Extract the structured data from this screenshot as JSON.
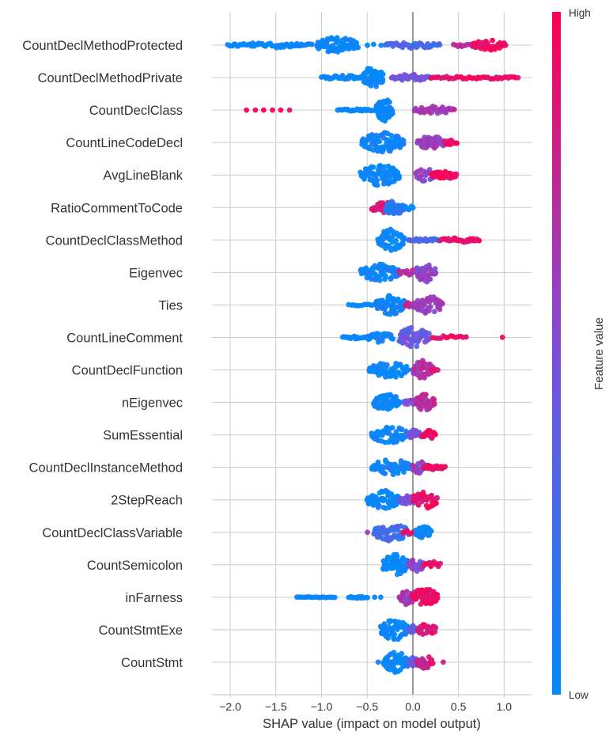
{
  "chart_data": {
    "type": "scatter",
    "subtype": "shap-beeswarm",
    "title": "",
    "xlabel": "SHAP value (impact on model output)",
    "ylabel": "",
    "xlim": [
      -2.2,
      1.3
    ],
    "xticks": [
      -2.0,
      -1.5,
      -1.0,
      -0.5,
      0.0,
      0.5,
      1.0
    ],
    "xtick_labels": [
      "−2.0",
      "−1.5",
      "−1.0",
      "−0.5",
      "0.0",
      "0.5",
      "1.0"
    ],
    "grid": true,
    "colorbar": {
      "title": "Feature value",
      "high_label": "High",
      "low_label": "Low",
      "low_color": "#008afb",
      "high_color": "#ff0052",
      "placement": "right"
    },
    "features": [
      {
        "name": "CountDeclMethodProtected",
        "clusters": [
          {
            "from": -2.03,
            "to": -1.1,
            "n": 55,
            "spread": 0.25,
            "value": 0.0
          },
          {
            "from": -1.05,
            "to": -0.6,
            "n": 70,
            "spread": 0.75,
            "value": 0.0
          },
          {
            "from": -0.5,
            "to": -0.35,
            "n": 3,
            "spread": 0.1,
            "value": 0.05
          },
          {
            "from": -0.3,
            "to": 0.3,
            "n": 40,
            "spread": 0.3,
            "value": 0.3
          },
          {
            "from": 0.45,
            "to": 0.65,
            "n": 10,
            "spread": 0.2,
            "value": 0.75
          },
          {
            "from": 0.65,
            "to": 1.02,
            "n": 35,
            "spread": 0.45,
            "value": 0.92
          }
        ]
      },
      {
        "name": "CountDeclMethodPrivate",
        "clusters": [
          {
            "from": -1.0,
            "to": -0.55,
            "n": 30,
            "spread": 0.2,
            "value": 0.0
          },
          {
            "from": -0.55,
            "to": -0.33,
            "n": 60,
            "spread": 0.95,
            "value": 0.0
          },
          {
            "from": -0.23,
            "to": 0.2,
            "n": 40,
            "spread": 0.3,
            "value": 0.45
          },
          {
            "from": 0.2,
            "to": 1.15,
            "n": 45,
            "spread": 0.15,
            "value": 0.95
          }
        ]
      },
      {
        "name": "CountDeclClass",
        "clusters": [
          {
            "from": -1.82,
            "to": -1.35,
            "n": 6,
            "spread": 0.0,
            "value": 1.0
          },
          {
            "from": -0.82,
            "to": -0.4,
            "n": 25,
            "spread": 0.1,
            "value": 0.0
          },
          {
            "from": -0.4,
            "to": -0.22,
            "n": 55,
            "spread": 1.0,
            "value": 0.0
          },
          {
            "from": 0.02,
            "to": 0.45,
            "n": 35,
            "spread": 0.35,
            "value": 0.65
          }
        ]
      },
      {
        "name": "CountLineCodeDecl",
        "clusters": [
          {
            "from": -0.56,
            "to": -0.1,
            "n": 80,
            "spread": 0.9,
            "value": 0.05
          },
          {
            "from": 0.05,
            "to": 0.35,
            "n": 50,
            "spread": 0.6,
            "value": 0.6
          },
          {
            "from": 0.35,
            "to": 0.48,
            "n": 15,
            "spread": 0.25,
            "value": 0.95
          }
        ]
      },
      {
        "name": "AvgLineBlank",
        "clusters": [
          {
            "from": -0.57,
            "to": -0.15,
            "n": 75,
            "spread": 0.95,
            "value": 0.0
          },
          {
            "from": 0.03,
            "to": 0.25,
            "n": 25,
            "spread": 0.6,
            "value": 0.55
          },
          {
            "from": 0.2,
            "to": 0.48,
            "n": 30,
            "spread": 0.35,
            "value": 0.95
          }
        ]
      },
      {
        "name": "RatioCommentToCode",
        "clusters": [
          {
            "from": -0.45,
            "to": -0.22,
            "n": 35,
            "spread": 0.55,
            "value": 0.85
          },
          {
            "from": -0.3,
            "to": -0.1,
            "n": 40,
            "spread": 0.7,
            "value": 0.15
          },
          {
            "from": -0.1,
            "to": 0.0,
            "n": 8,
            "spread": 0.2,
            "value": 0.0
          }
        ]
      },
      {
        "name": "CountDeclClassMethod",
        "clusters": [
          {
            "from": -0.38,
            "to": -0.1,
            "n": 55,
            "spread": 1.0,
            "value": 0.0
          },
          {
            "from": -0.05,
            "to": 0.3,
            "n": 25,
            "spread": 0.15,
            "value": 0.3
          },
          {
            "from": 0.3,
            "to": 0.73,
            "n": 30,
            "spread": 0.2,
            "value": 0.9
          }
        ]
      },
      {
        "name": "Eigenvec",
        "clusters": [
          {
            "from": -0.57,
            "to": -0.15,
            "n": 70,
            "spread": 0.8,
            "value": 0.05
          },
          {
            "from": -0.15,
            "to": 0.05,
            "n": 12,
            "spread": 0.3,
            "value": 0.75
          },
          {
            "from": 0.03,
            "to": 0.25,
            "n": 45,
            "spread": 0.85,
            "value": 0.55
          }
        ]
      },
      {
        "name": "Ties",
        "clusters": [
          {
            "from": -0.7,
            "to": -0.4,
            "n": 12,
            "spread": 0.1,
            "value": 0.0
          },
          {
            "from": -0.4,
            "to": -0.08,
            "n": 70,
            "spread": 0.85,
            "value": 0.05
          },
          {
            "from": -0.08,
            "to": 0.05,
            "n": 12,
            "spread": 0.3,
            "value": 0.75
          },
          {
            "from": 0.03,
            "to": 0.32,
            "n": 50,
            "spread": 0.8,
            "value": 0.6
          }
        ]
      },
      {
        "name": "CountLineComment",
        "clusters": [
          {
            "from": -0.77,
            "to": -0.5,
            "n": 20,
            "spread": 0.15,
            "value": 0.0
          },
          {
            "from": -0.5,
            "to": -0.22,
            "n": 30,
            "spread": 0.45,
            "value": 0.05
          },
          {
            "from": -0.15,
            "to": 0.18,
            "n": 55,
            "spread": 0.95,
            "value": 0.4
          },
          {
            "from": 0.22,
            "to": 0.58,
            "n": 14,
            "spread": 0.15,
            "value": 0.95
          },
          {
            "from": 0.98,
            "to": 0.98,
            "n": 1,
            "spread": 0.0,
            "value": 0.95
          }
        ]
      },
      {
        "name": "CountDeclFunction",
        "clusters": [
          {
            "from": -0.48,
            "to": -0.05,
            "n": 60,
            "spread": 0.75,
            "value": 0.0
          },
          {
            "from": 0.0,
            "to": 0.22,
            "n": 40,
            "spread": 0.85,
            "value": 0.7
          },
          {
            "from": 0.2,
            "to": 0.27,
            "n": 5,
            "spread": 0.1,
            "value": 0.95
          }
        ]
      },
      {
        "name": "nEigenvec",
        "clusters": [
          {
            "from": -0.43,
            "to": -0.14,
            "n": 55,
            "spread": 0.75,
            "value": 0.0
          },
          {
            "from": -0.1,
            "to": 0.03,
            "n": 10,
            "spread": 0.25,
            "value": 0.5
          },
          {
            "from": 0.03,
            "to": 0.24,
            "n": 45,
            "spread": 0.8,
            "value": 0.7
          }
        ]
      },
      {
        "name": "SumEssential",
        "clusters": [
          {
            "from": -0.45,
            "to": -0.05,
            "n": 60,
            "spread": 0.75,
            "value": 0.0
          },
          {
            "from": -0.05,
            "to": 0.1,
            "n": 25,
            "spread": 0.5,
            "value": 0.45
          },
          {
            "from": 0.1,
            "to": 0.25,
            "n": 20,
            "spread": 0.4,
            "value": 0.95
          }
        ]
      },
      {
        "name": "CountDeclInstanceMethod",
        "clusters": [
          {
            "from": -0.45,
            "to": -0.02,
            "n": 55,
            "spread": 0.75,
            "value": 0.05
          },
          {
            "from": 0.0,
            "to": 0.15,
            "n": 30,
            "spread": 0.65,
            "value": 0.6
          },
          {
            "from": 0.12,
            "to": 0.35,
            "n": 22,
            "spread": 0.2,
            "value": 0.95
          }
        ]
      },
      {
        "name": "2StepReach",
        "clusters": [
          {
            "from": -0.5,
            "to": -0.15,
            "n": 60,
            "spread": 0.85,
            "value": 0.0
          },
          {
            "from": -0.15,
            "to": 0.05,
            "n": 25,
            "spread": 0.45,
            "value": 0.45
          },
          {
            "from": 0.0,
            "to": 0.27,
            "n": 40,
            "spread": 0.8,
            "value": 0.9
          }
        ]
      },
      {
        "name": "CountDeclClassVariable",
        "clusters": [
          {
            "from": -0.5,
            "to": -0.5,
            "n": 1,
            "spread": 0.0,
            "value": 0.65
          },
          {
            "from": -0.43,
            "to": -0.05,
            "n": 55,
            "spread": 0.8,
            "value": 0.25
          },
          {
            "from": -0.1,
            "to": 0.0,
            "n": 6,
            "spread": 0.2,
            "value": 0.95
          },
          {
            "from": 0.03,
            "to": 0.2,
            "n": 25,
            "spread": 0.55,
            "value": 0.0
          }
        ]
      },
      {
        "name": "CountSemicolon",
        "clusters": [
          {
            "from": -0.33,
            "to": -0.05,
            "n": 55,
            "spread": 0.95,
            "value": 0.0
          },
          {
            "from": -0.05,
            "to": 0.12,
            "n": 25,
            "spread": 0.65,
            "value": 0.55
          },
          {
            "from": 0.12,
            "to": 0.3,
            "n": 12,
            "spread": 0.35,
            "value": 0.95
          }
        ]
      },
      {
        "name": "inFarness",
        "clusters": [
          {
            "from": -1.27,
            "to": -0.85,
            "n": 18,
            "spread": 0.05,
            "value": 0.0
          },
          {
            "from": -0.7,
            "to": -0.5,
            "n": 12,
            "spread": 0.1,
            "value": 0.0
          },
          {
            "from": -0.42,
            "to": -0.35,
            "n": 2,
            "spread": 0.0,
            "value": 0.0
          },
          {
            "from": -0.15,
            "to": 0.05,
            "n": 40,
            "spread": 0.7,
            "value": 0.65
          },
          {
            "from": 0.0,
            "to": 0.27,
            "n": 60,
            "spread": 0.85,
            "value": 0.95
          }
        ]
      },
      {
        "name": "CountStmtExe",
        "clusters": [
          {
            "from": -0.35,
            "to": -0.05,
            "n": 60,
            "spread": 0.95,
            "value": 0.0
          },
          {
            "from": -0.05,
            "to": 0.08,
            "n": 20,
            "spread": 0.4,
            "value": 0.4
          },
          {
            "from": 0.05,
            "to": 0.25,
            "n": 30,
            "spread": 0.55,
            "value": 0.85
          }
        ]
      },
      {
        "name": "CountStmt",
        "clusters": [
          {
            "from": -0.38,
            "to": -0.38,
            "n": 1,
            "spread": 0.0,
            "value": 0.0
          },
          {
            "from": -0.32,
            "to": -0.05,
            "n": 55,
            "spread": 0.95,
            "value": 0.0
          },
          {
            "from": -0.05,
            "to": 0.1,
            "n": 25,
            "spread": 0.45,
            "value": 0.4
          },
          {
            "from": 0.05,
            "to": 0.22,
            "n": 25,
            "spread": 0.6,
            "value": 0.8
          },
          {
            "from": 0.33,
            "to": 0.33,
            "n": 1,
            "spread": 0.0,
            "value": 0.85
          }
        ]
      }
    ]
  }
}
